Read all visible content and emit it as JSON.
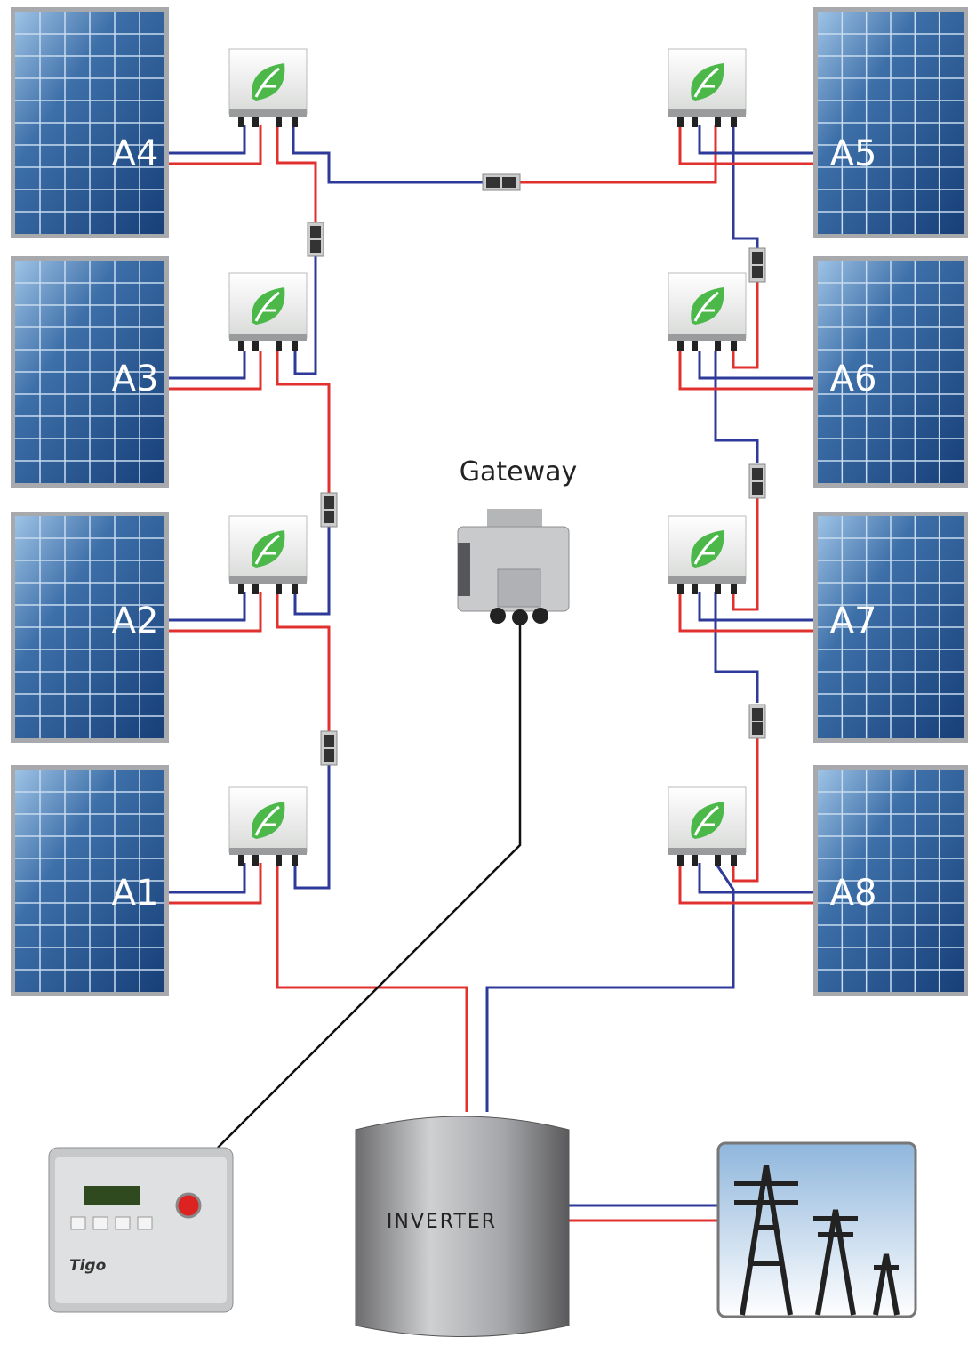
{
  "panels": [
    {
      "label": "A4"
    },
    {
      "label": "A3"
    },
    {
      "label": "A2"
    },
    {
      "label": "A1"
    },
    {
      "label": "A5"
    },
    {
      "label": "A6"
    },
    {
      "label": "A7"
    },
    {
      "label": "A8"
    }
  ],
  "gateway": {
    "label": "Gateway"
  },
  "inverter": {
    "label": "INVERTER"
  },
  "controller": {
    "brand": "Tigo"
  }
}
